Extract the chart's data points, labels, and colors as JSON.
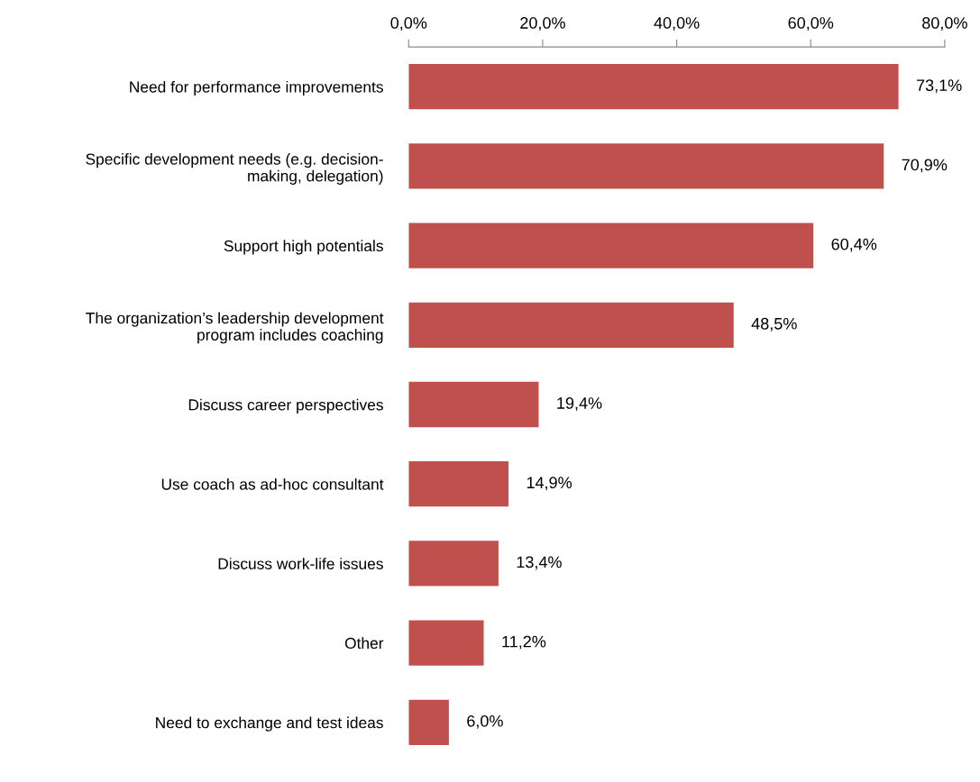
{
  "chart_data": {
    "type": "bar",
    "orientation": "horizontal",
    "categories": [
      "Need for performance improvements",
      "Specific development needs (e.g. decision-\nmaking, delegation)",
      "Support high potentials",
      "The organization’s leadership development\nprogram includes coaching",
      "Discuss career perspectives",
      "Use coach as ad-hoc consultant",
      "Discuss work-life issues",
      "Other",
      "Need to exchange and test ideas"
    ],
    "values": [
      73.1,
      70.9,
      60.4,
      48.5,
      19.4,
      14.9,
      13.4,
      11.2,
      6.0
    ],
    "value_labels": [
      "73,1%",
      "70,9%",
      "60,4%",
      "48,5%",
      "19,4%",
      "14,9%",
      "13,4%",
      "11,2%",
      "6,0%"
    ],
    "color": "#c0504d",
    "xlim": [
      0,
      80
    ],
    "xticks": [
      {
        "value": 0,
        "label": "0,0%"
      },
      {
        "value": 20,
        "label": "20,0%"
      },
      {
        "value": 40,
        "label": "40,0%"
      },
      {
        "value": 60,
        "label": "60,0%"
      },
      {
        "value": 80,
        "label": "80,0%"
      }
    ],
    "grid": false
  }
}
